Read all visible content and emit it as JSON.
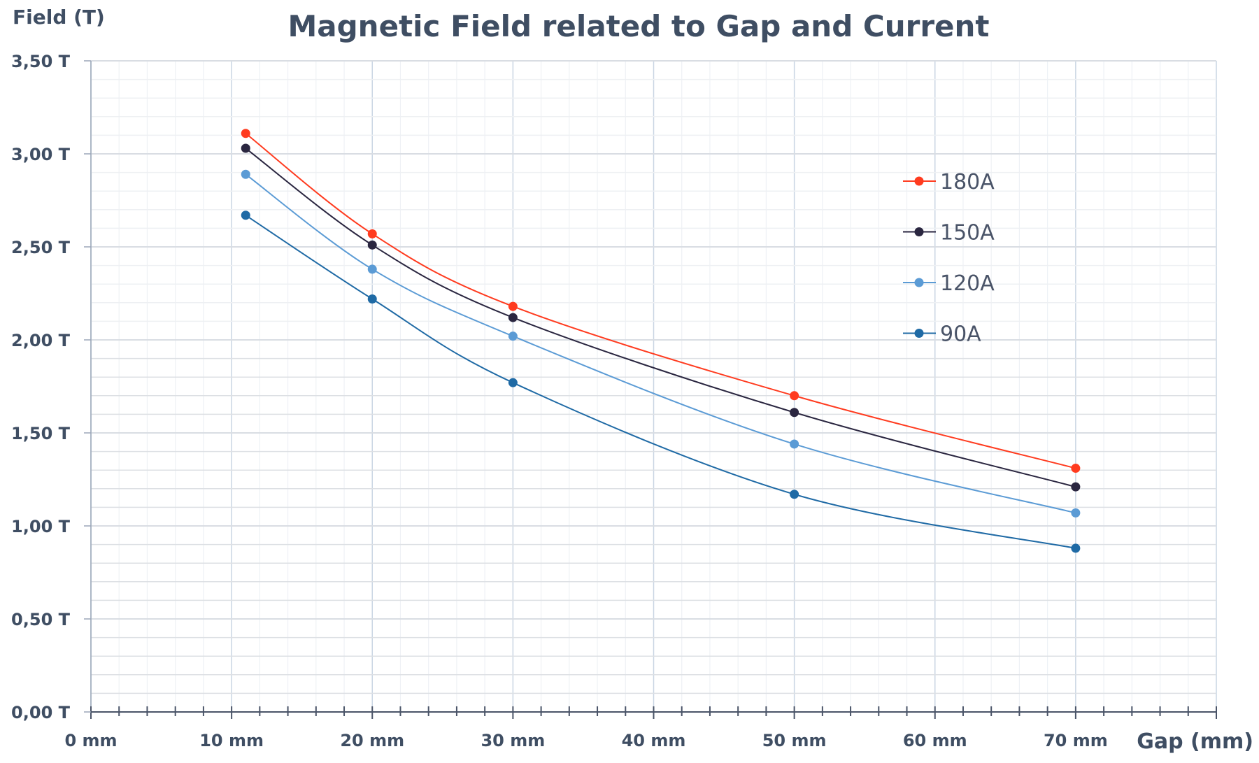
{
  "chart_data": {
    "type": "line",
    "title": "Magnetic Field related to Gap and Current",
    "xlabel": "Gap (mm)",
    "ylabel": "Field (T)",
    "xlim": [
      0,
      80
    ],
    "ylim": [
      0,
      3.5
    ],
    "x_ticks": [
      {
        "value": 0,
        "label": "0 mm"
      },
      {
        "value": 10,
        "label": "10 mm"
      },
      {
        "value": 20,
        "label": "20 mm"
      },
      {
        "value": 30,
        "label": "30 mm"
      },
      {
        "value": 40,
        "label": "40 mm"
      },
      {
        "value": 50,
        "label": "50 mm"
      },
      {
        "value": 60,
        "label": "60 mm"
      },
      {
        "value": 70,
        "label": "70 mm"
      }
    ],
    "y_ticks": [
      {
        "value": 0,
        "label": "0,00 T"
      },
      {
        "value": 0.5,
        "label": "0,50 T"
      },
      {
        "value": 1,
        "label": "1,00 T"
      },
      {
        "value": 1.5,
        "label": "1,50 T"
      },
      {
        "value": 2,
        "label": "2,00 T"
      },
      {
        "value": 2.5,
        "label": "2,50 T"
      },
      {
        "value": 3,
        "label": "3,00 T"
      },
      {
        "value": 3.5,
        "label": "3,50 T"
      }
    ],
    "grid": true,
    "legend_position": "right",
    "x": [
      11,
      20,
      30,
      50,
      70
    ],
    "series": [
      {
        "name": "180A",
        "color": "#ff3b1f",
        "values": [
          3.11,
          2.57,
          2.18,
          1.7,
          1.31
        ]
      },
      {
        "name": "150A",
        "color": "#2a2640",
        "values": [
          3.03,
          2.51,
          2.12,
          1.61,
          1.21
        ]
      },
      {
        "name": "120A",
        "color": "#5b9bd5",
        "values": [
          2.89,
          2.38,
          2.02,
          1.44,
          1.07
        ]
      },
      {
        "name": "90A",
        "color": "#1f6aa5",
        "values": [
          2.67,
          2.22,
          1.77,
          1.17,
          0.88
        ]
      }
    ]
  }
}
